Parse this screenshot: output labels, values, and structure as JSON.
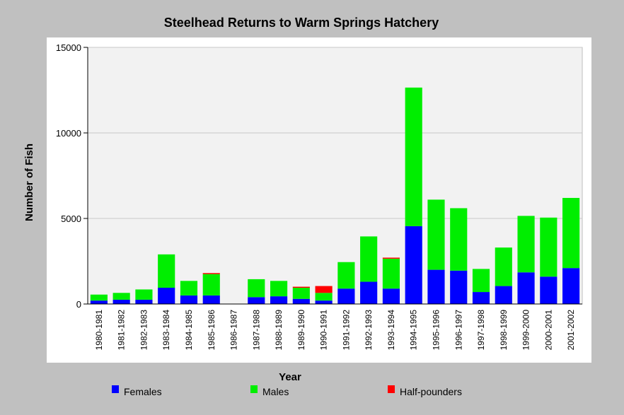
{
  "chart_data": {
    "type": "bar",
    "stacked": true,
    "title": "Steelhead Returns to Warm Springs Hatchery",
    "xlabel": "Year",
    "ylabel": "Number of Fish",
    "ylim": [
      0,
      15000
    ],
    "yticks": [
      0,
      5000,
      10000,
      15000
    ],
    "grid": true,
    "legend_position": "bottom",
    "categories": [
      "1980-1981",
      "1981-1982",
      "1982-1983",
      "1983-1984",
      "1984-1985",
      "1985-1986",
      "1986-1987",
      "1987-1988",
      "1988-1989",
      "1989-1990",
      "1990-1991",
      "1991-1992",
      "1992-1993",
      "1993-1994",
      "1994-1995",
      "1995-1996",
      "1996-1997",
      "1997-1998",
      "1998-1999",
      "1999-2000",
      "2000-2001",
      "2001-2002"
    ],
    "series": [
      {
        "name": "Females",
        "color": "#0000ff",
        "values": [
          200,
          250,
          250,
          950,
          500,
          500,
          0,
          400,
          450,
          300,
          200,
          900,
          1300,
          900,
          4550,
          2000,
          1950,
          700,
          1050,
          1850,
          1600,
          2100
        ]
      },
      {
        "name": "Males",
        "color": "#00ee00",
        "values": [
          350,
          400,
          600,
          1950,
          850,
          1250,
          0,
          1050,
          900,
          650,
          450,
          1550,
          2650,
          1750,
          8100,
          4100,
          3650,
          1350,
          2250,
          3300,
          3450,
          4100
        ]
      },
      {
        "name": "Half-pounders",
        "color": "#ff0000",
        "values": [
          0,
          0,
          0,
          0,
          0,
          60,
          0,
          0,
          0,
          60,
          400,
          0,
          0,
          60,
          0,
          0,
          0,
          0,
          0,
          0,
          0,
          0
        ]
      }
    ]
  }
}
